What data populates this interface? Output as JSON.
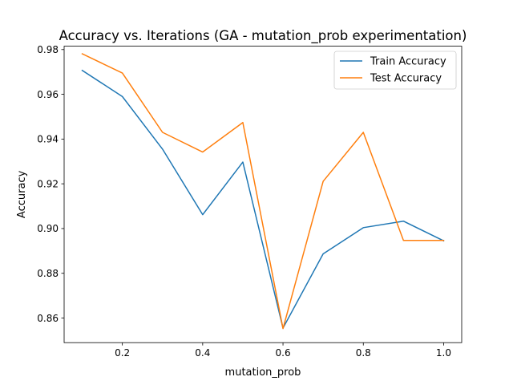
{
  "chart_data": {
    "type": "line",
    "title": "Accuracy vs. Iterations (GA - mutation_prob experimentation)",
    "xlabel": "mutation_prob",
    "ylabel": "Accuracy",
    "x": [
      0.1,
      0.2,
      0.3,
      0.4,
      0.5,
      0.6,
      0.7,
      0.8,
      0.9,
      1.0
    ],
    "xlim": [
      0.055,
      1.045
    ],
    "ylim": [
      0.849,
      0.9815
    ],
    "xticks": [
      "0.2",
      "0.4",
      "0.6",
      "0.8",
      "1.0"
    ],
    "yticks": [
      "0.86",
      "0.88",
      "0.90",
      "0.92",
      "0.94",
      "0.96",
      "0.98"
    ],
    "grid": false,
    "legend_position": "upper right",
    "series": [
      {
        "name": "Train Accuracy",
        "color": "#1f77b4",
        "values": [
          0.9707,
          0.959,
          0.9355,
          0.9062,
          0.9297,
          0.8555,
          0.8887,
          0.9004,
          0.9033,
          0.8945
        ]
      },
      {
        "name": "Test Accuracy",
        "color": "#ff7f0e",
        "values": [
          0.9781,
          0.9695,
          0.943,
          0.9342,
          0.9474,
          0.8553,
          0.9211,
          0.943,
          0.8947,
          0.8947
        ]
      }
    ]
  }
}
